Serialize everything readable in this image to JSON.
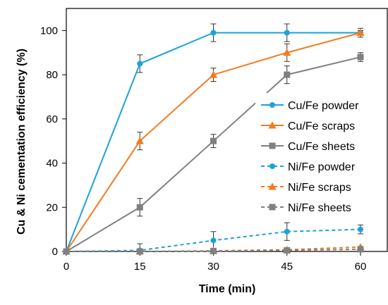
{
  "chart_data": {
    "type": "line",
    "title": "",
    "xlabel": "Time (min)",
    "ylabel": "Cu & Ni cementation efficiency (%)",
    "x": [
      0,
      15,
      30,
      45,
      60
    ],
    "xlim": [
      0,
      60
    ],
    "ylim": [
      0,
      110
    ],
    "xticks": [
      "0",
      "15",
      "30",
      "45",
      "60"
    ],
    "yticks": [
      "0",
      "20",
      "40",
      "60",
      "80",
      "100"
    ],
    "grid": false,
    "legend_position": "right",
    "series": [
      {
        "name": "Cu/Fe powder",
        "values": [
          0,
          85,
          99,
          99,
          99
        ],
        "errors": [
          0,
          4,
          4,
          4,
          2
        ],
        "color": "#1aa3d9",
        "marker": "circle",
        "dash": "solid"
      },
      {
        "name": "Cu/Fe scraps",
        "values": [
          0,
          50,
          80,
          90,
          99
        ],
        "errors": [
          0,
          4,
          3,
          4,
          1
        ],
        "color": "#f47b20",
        "marker": "triangle",
        "dash": "solid"
      },
      {
        "name": "Cu/Fe sheets",
        "values": [
          0,
          20,
          50,
          80,
          88
        ],
        "errors": [
          0,
          4,
          3,
          4,
          2
        ],
        "color": "#808080",
        "marker": "square",
        "dash": "solid"
      },
      {
        "name": "Ni/Fe powder",
        "values": [
          0,
          0.5,
          5,
          9,
          10
        ],
        "errors": [
          0,
          3,
          4,
          4,
          2
        ],
        "color": "#1aa3d9",
        "marker": "circle",
        "dash": "dashed"
      },
      {
        "name": "Ni/Fe scraps",
        "values": [
          0,
          0,
          0.3,
          0.8,
          2
        ],
        "errors": [
          0,
          0,
          0,
          0,
          0
        ],
        "color": "#f47b20",
        "marker": "triangle",
        "dash": "dashed"
      },
      {
        "name": "Ni/Fe sheets",
        "values": [
          0,
          0,
          0.2,
          0.5,
          1
        ],
        "errors": [
          0,
          0,
          0,
          0,
          0
        ],
        "color": "#808080",
        "marker": "square",
        "dash": "dashed"
      }
    ]
  }
}
